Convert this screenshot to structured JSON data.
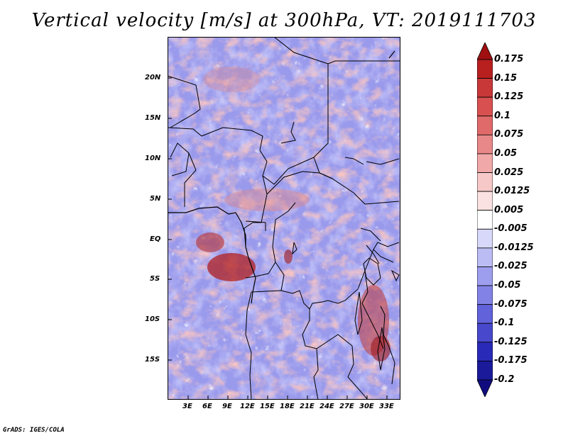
{
  "title": "Vertical velocity [m/s] at 300hPa, VT: 2019111703",
  "credit": "GrADS: IGES/COLA",
  "map": {
    "lon_labels": [
      "3E",
      "6E",
      "9E",
      "12E",
      "15E",
      "18E",
      "21E",
      "24E",
      "27E",
      "30E",
      "33E"
    ],
    "lat_labels": [
      "20N",
      "15N",
      "10N",
      "5N",
      "EQ",
      "5S",
      "10S",
      "15S"
    ]
  },
  "colorbar": {
    "levels": [
      "0.175",
      "0.15",
      "0.125",
      "0.1",
      "0.075",
      "0.05",
      "0.025",
      "0.0125",
      "0.005",
      "-0.005",
      "-0.0125",
      "-0.025",
      "-0.05",
      "-0.075",
      "-0.1",
      "-0.125",
      "-0.175",
      "-0.2"
    ],
    "colors": [
      "#a01010",
      "#b82020",
      "#c83838",
      "#d85050",
      "#e06a6a",
      "#e88888",
      "#f0a8a8",
      "#f6c8c8",
      "#fbe2e2",
      "#ffffff",
      "#d8d8fa",
      "#bcbcf4",
      "#9e9eee",
      "#8282e6",
      "#6262da",
      "#4848cc",
      "#2a2ab8",
      "#1a1a9a",
      "#100c80"
    ]
  }
}
